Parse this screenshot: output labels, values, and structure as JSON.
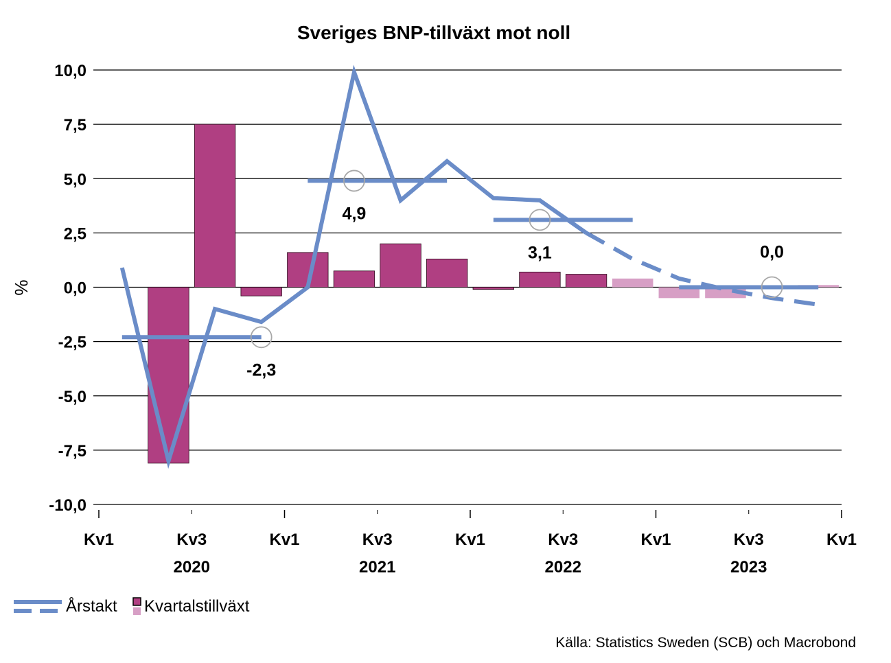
{
  "chart_data": {
    "type": "bar",
    "title": "Sveriges BNP-tillväxt mot noll",
    "ylabel": "%",
    "ylim": [
      -10,
      10
    ],
    "yticks": [
      10,
      7.5,
      5,
      2.5,
      0,
      -2.5,
      -5,
      -7.5,
      -10
    ],
    "ytick_labels": [
      "10,0",
      "7,5",
      "5,0",
      "2,5",
      "0,0",
      "-2,5",
      "-5,0",
      "-7,5",
      "-10,0"
    ],
    "grid": true,
    "x_ticks": [
      {
        "pos": 0,
        "label": "Kv1",
        "year": ""
      },
      {
        "pos": 2,
        "label": "Kv3",
        "year": "2020"
      },
      {
        "pos": 4,
        "label": "Kv1",
        "year": ""
      },
      {
        "pos": 6,
        "label": "Kv3",
        "year": "2021"
      },
      {
        "pos": 8,
        "label": "Kv1",
        "year": ""
      },
      {
        "pos": 10,
        "label": "Kv3",
        "year": "2022"
      },
      {
        "pos": 12,
        "label": "Kv1",
        "year": ""
      },
      {
        "pos": 14,
        "label": "Kv3",
        "year": "2023"
      },
      {
        "pos": 16,
        "label": "Kv1",
        "year": ""
      }
    ],
    "quarterly_growth": {
      "name": "Kvartalstillväxt",
      "color_actual": "#b03f82",
      "color_forecast": "#d79fc5",
      "values": [
        {
          "x": 1.5,
          "value": -8.1,
          "forecast": false
        },
        {
          "x": 2.5,
          "value": 7.5,
          "forecast": false
        },
        {
          "x": 3.5,
          "value": -0.4,
          "forecast": false
        },
        {
          "x": 4.5,
          "value": 1.6,
          "forecast": false
        },
        {
          "x": 5.5,
          "value": 0.75,
          "forecast": false
        },
        {
          "x": 6.5,
          "value": 2.0,
          "forecast": false
        },
        {
          "x": 7.5,
          "value": 1.3,
          "forecast": false
        },
        {
          "x": 8.5,
          "value": -0.1,
          "forecast": false
        },
        {
          "x": 9.5,
          "value": 0.7,
          "forecast": false
        },
        {
          "x": 10.5,
          "value": 0.6,
          "forecast": false
        },
        {
          "x": 11.5,
          "value": 0.4,
          "forecast": true
        },
        {
          "x": 12.5,
          "value": -0.5,
          "forecast": true
        },
        {
          "x": 13.5,
          "value": -0.5,
          "forecast": true
        },
        {
          "x": 14.5,
          "value": 0.0,
          "forecast": true
        },
        {
          "x": 15.5,
          "value": 0.1,
          "forecast": true
        }
      ]
    },
    "annual_rate": {
      "name": "Årstakt",
      "color": "#6a8cc8",
      "actual": [
        {
          "x": 0.5,
          "value": 0.9
        },
        {
          "x": 1.5,
          "value": -8.0
        },
        {
          "x": 2.5,
          "value": -1.0
        },
        {
          "x": 3.5,
          "value": -1.6
        },
        {
          "x": 4.5,
          "value": 0.0
        },
        {
          "x": 5.5,
          "value": 9.9
        },
        {
          "x": 6.5,
          "value": 4.0
        },
        {
          "x": 7.5,
          "value": 5.8
        },
        {
          "x": 8.5,
          "value": 4.1
        },
        {
          "x": 9.5,
          "value": 4.0
        },
        {
          "x": 10.5,
          "value": 2.5
        }
      ],
      "forecast": [
        {
          "x": 10.5,
          "value": 2.5
        },
        {
          "x": 11.5,
          "value": 1.3
        },
        {
          "x": 12.5,
          "value": 0.4
        },
        {
          "x": 13.5,
          "value": -0.1
        },
        {
          "x": 14.5,
          "value": -0.5
        },
        {
          "x": 15.5,
          "value": -0.8
        }
      ]
    },
    "annual_averages": [
      {
        "year": "2020",
        "x_start": 0.5,
        "x_end": 3.5,
        "value": -2.3,
        "label": "-2,3",
        "marker_x": 3.5
      },
      {
        "year": "2021",
        "x_start": 4.5,
        "x_end": 7.5,
        "value": 4.9,
        "label": "4,9",
        "marker_x": 5.5
      },
      {
        "year": "2022",
        "x_start": 8.5,
        "x_end": 11.5,
        "value": 3.1,
        "label": "3,1",
        "marker_x": 9.5
      },
      {
        "year": "2023",
        "x_start": 12.5,
        "x_end": 15.5,
        "value": 0.0,
        "label": "0,0",
        "marker_x": 14.5
      }
    ],
    "legend": {
      "placement": "bottom-left",
      "line_label": "Årstakt",
      "bar_label": "Kvartalstillväxt"
    },
    "source": "Källa: Statistics Sweden (SCB) och Macrobond"
  }
}
